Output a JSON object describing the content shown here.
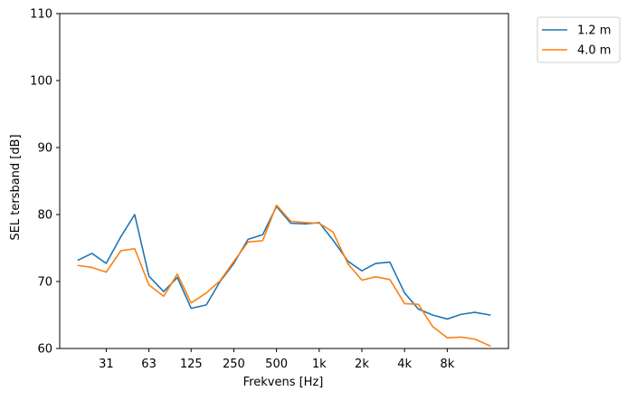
{
  "chart_data": {
    "type": "line",
    "xlabel": "Frekvens [Hz]",
    "ylabel": "SEL tersband [dB]",
    "x_scale": "log",
    "x_tick_labels": [
      "31",
      "63",
      "125",
      "250",
      "500",
      "1k",
      "2k",
      "4k",
      "8k"
    ],
    "x_tick_values": [
      31.5,
      63,
      125,
      250,
      500,
      1000,
      2000,
      4000,
      8000
    ],
    "ylim": [
      60,
      110
    ],
    "y_ticks": [
      60,
      70,
      80,
      90,
      100,
      110
    ],
    "grid": false,
    "legend_position": "outside top-right",
    "x": [
      20,
      25,
      31.5,
      40,
      50,
      63,
      80,
      100,
      125,
      160,
      200,
      250,
      315,
      400,
      500,
      630,
      800,
      1000,
      1250,
      1600,
      2000,
      2500,
      3150,
      4000,
      5000,
      6300,
      8000,
      10000,
      12500,
      16000
    ],
    "series": [
      {
        "name": "1.2 m",
        "color": "#1f77b4",
        "values": [
          73.2,
          74.2,
          72.7,
          76.7,
          80.0,
          70.8,
          68.5,
          70.6,
          66.0,
          66.5,
          70.0,
          72.7,
          76.3,
          77.0,
          81.2,
          78.7,
          78.6,
          78.8,
          76.2,
          73.0,
          71.6,
          72.7,
          72.9,
          68.3,
          65.9,
          65.0,
          64.4,
          65.1,
          65.4,
          65.0
        ]
      },
      {
        "name": "4.0 m",
        "color": "#ff7f0e",
        "values": [
          72.4,
          72.1,
          71.4,
          74.6,
          74.9,
          69.5,
          67.8,
          71.1,
          66.8,
          68.3,
          70.1,
          73.0,
          75.9,
          76.1,
          81.4,
          79.0,
          78.8,
          78.7,
          77.4,
          72.6,
          70.2,
          70.7,
          70.3,
          66.7,
          66.6,
          63.3,
          61.6,
          61.7,
          61.4,
          60.4
        ]
      }
    ]
  }
}
